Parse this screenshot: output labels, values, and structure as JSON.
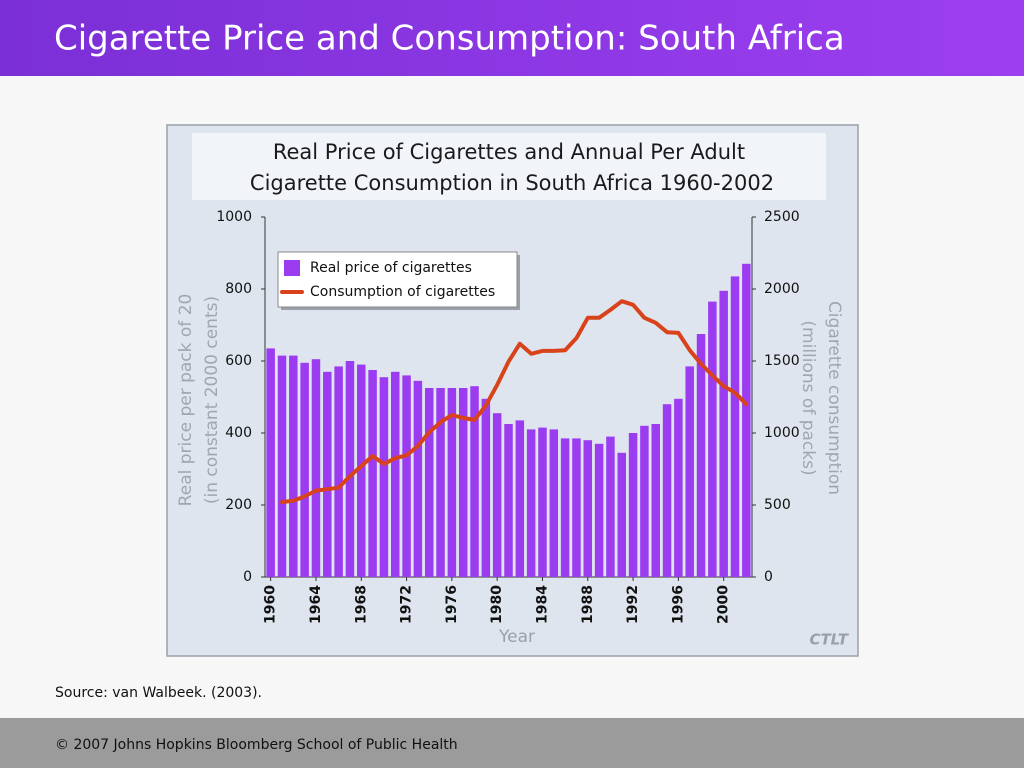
{
  "header": {
    "title": "Cigarette Price and Consumption: South Africa"
  },
  "chart_data": {
    "type": "bar",
    "title": [
      "Real Price of Cigarettes and Annual Per Adult",
      "Cigarette Consumption in South Africa 1960-2002"
    ],
    "ylabel": [
      "Real price per pack of 20",
      "(in constant 2000 cents)"
    ],
    "y2label": [
      "Cigarette consumption",
      "(millions of packs)"
    ],
    "xlabel": "Year",
    "x": [
      1960,
      1961,
      1962,
      1963,
      1964,
      1965,
      1966,
      1967,
      1968,
      1969,
      1970,
      1971,
      1972,
      1973,
      1974,
      1975,
      1976,
      1977,
      1978,
      1979,
      1980,
      1981,
      1982,
      1983,
      1984,
      1985,
      1986,
      1987,
      1988,
      1989,
      1990,
      1991,
      1992,
      1993,
      1994,
      1995,
      1996,
      1997,
      1998,
      1999,
      2000,
      2001,
      2002
    ],
    "xlim": [
      1959.5,
      2002.5
    ],
    "xticks": [
      1960,
      1964,
      1968,
      1972,
      1976,
      1980,
      1984,
      1988,
      1992,
      1996,
      2000
    ],
    "ylim": [
      0,
      1000
    ],
    "yticks": [
      0,
      200,
      400,
      600,
      800,
      1000
    ],
    "y2lim": [
      0,
      2500
    ],
    "y2ticks": [
      0,
      500,
      1000,
      1500,
      2000,
      2500
    ],
    "series": [
      {
        "name": "Real price of cigarettes",
        "type": "bar",
        "color": "#9b3cf0",
        "values": [
          635,
          615,
          615,
          595,
          605,
          570,
          585,
          600,
          590,
          575,
          555,
          570,
          560,
          545,
          525,
          525,
          525,
          525,
          530,
          495,
          455,
          425,
          435,
          410,
          415,
          410,
          385,
          385,
          380,
          370,
          390,
          345,
          400,
          420,
          425,
          480,
          495,
          585,
          675,
          765,
          795,
          835,
          870
        ]
      },
      {
        "name": "Consumption of cigarettes",
        "type": "line",
        "axis": "y2",
        "color": "#d8431b",
        "values": [
          null,
          520,
          530,
          560,
          600,
          610,
          620,
          700,
          770,
          840,
          785,
          825,
          845,
          910,
          1005,
          1075,
          1125,
          1105,
          1090,
          1190,
          1335,
          1495,
          1620,
          1550,
          1570,
          1570,
          1575,
          1660,
          1800,
          1800,
          1855,
          1915,
          1890,
          1800,
          1765,
          1700,
          1695,
          1575,
          1480,
          1400,
          1325,
          1280,
          1200
        ]
      }
    ],
    "legend": "upper left",
    "logo": "CTLT"
  },
  "source": "Source: van Walbeek. (2003).",
  "footer": "© 2007 Johns Hopkins Bloomberg School of Public Health"
}
